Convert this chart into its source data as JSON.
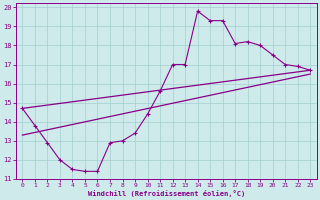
{
  "xlabel": "Windchill (Refroidissement éolien,°C)",
  "bg_color": "#ceeaea",
  "line_color": "#880088",
  "grid_color": "#aad4d4",
  "xlim": [
    -0.5,
    23.5
  ],
  "ylim": [
    11,
    20.2
  ],
  "xticks": [
    0,
    1,
    2,
    3,
    4,
    5,
    6,
    7,
    8,
    9,
    10,
    11,
    12,
    13,
    14,
    15,
    16,
    17,
    18,
    19,
    20,
    21,
    22,
    23
  ],
  "yticks": [
    11,
    12,
    13,
    14,
    15,
    16,
    17,
    18,
    19,
    20
  ],
  "line1_x": [
    0,
    1,
    2,
    3,
    4,
    5,
    6,
    7,
    8,
    9,
    10,
    11,
    12,
    13,
    14,
    15,
    16,
    17,
    18,
    19,
    20,
    21,
    22,
    23
  ],
  "line1_y": [
    14.7,
    13.8,
    12.9,
    12.0,
    11.5,
    11.4,
    11.4,
    12.9,
    13.0,
    13.4,
    14.4,
    15.6,
    17.0,
    17.0,
    19.8,
    19.3,
    19.3,
    18.1,
    18.2,
    18.0,
    17.5,
    17.0,
    16.9,
    16.7
  ],
  "line2_x": [
    0,
    23
  ],
  "line2_y": [
    14.7,
    16.7
  ],
  "line3_x": [
    0,
    23
  ],
  "line3_y": [
    13.3,
    16.5
  ]
}
